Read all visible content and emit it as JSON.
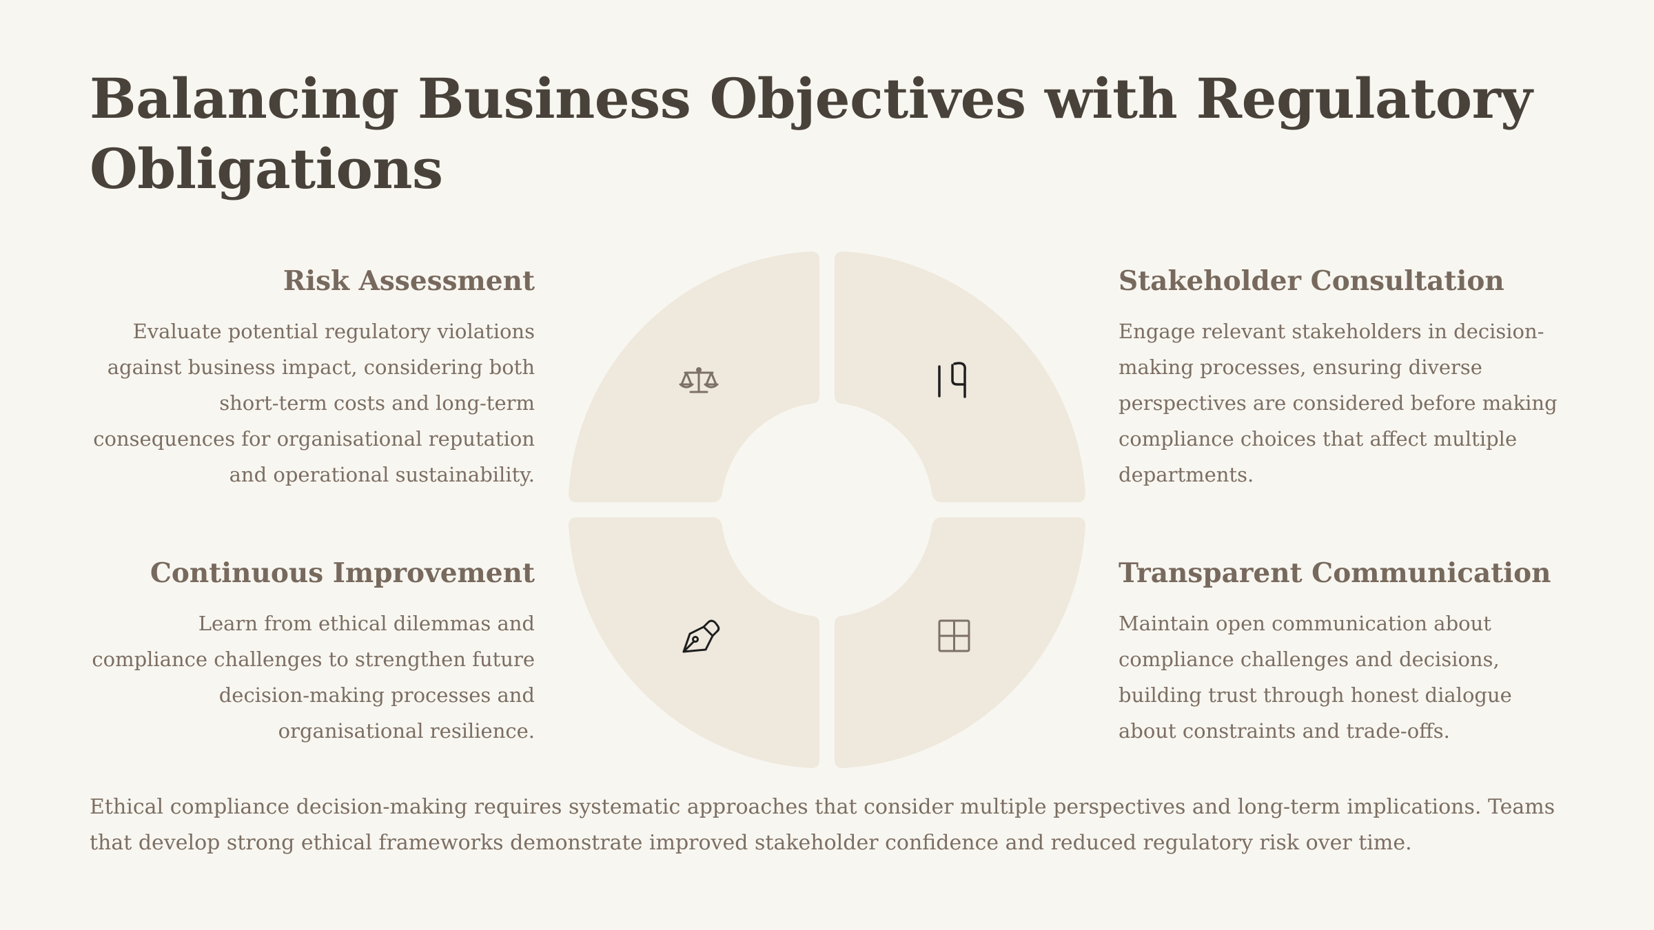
{
  "title": "Balancing Business Objectives with Regulatory Obligations",
  "quadrants": {
    "risk_assessment": {
      "heading": "Risk Assessment",
      "body": "Evaluate potential regulatory violations against business impact, considering both short-term costs and long-term consequences for organisational reputation and operational sustainability.",
      "icon": "balance-scale-icon"
    },
    "stakeholder_consultation": {
      "heading": "Stakeholder Consultation",
      "body": "Engage relevant stakeholders in decision-making processes, ensuring diverse perspectives are considered before making compliance choices that affect multiple departments.",
      "icon": "number-14-icon"
    },
    "continuous_improvement": {
      "heading": "Continuous Improvement",
      "body": "Learn from ethical dilemmas and compliance challenges to strengthen future decision-making processes and organisational resilience.",
      "icon": "pen-nib-icon"
    },
    "transparent_communication": {
      "heading": "Transparent Communication",
      "body": "Maintain open communication about compliance challenges and decisions, building trust through honest dialogue about constraints and trade-offs.",
      "icon": "window-grid-icon"
    }
  },
  "footer": "Ethical compliance decision-making requires systematic approaches that consider multiple perspectives and long-term implications. Teams that develop strong ethical frameworks demonstrate improved stakeholder confidence and reduced regulatory risk over time.",
  "colors": {
    "background": "#f8f6f0",
    "title": "#48423a",
    "heading": "#77695d",
    "body": "#7b6e63",
    "segment_fill": "#eee8dd",
    "icon_muted": "#7d7165",
    "icon_dark": "#1e1e1e"
  }
}
